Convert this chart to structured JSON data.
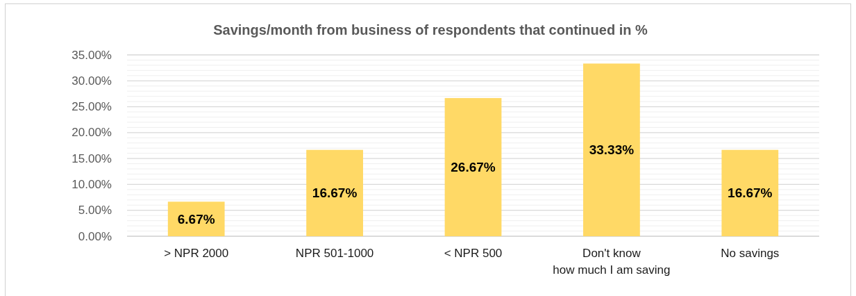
{
  "chart_data": {
    "type": "bar",
    "title": "Savings/month from business of respondents that continued in %",
    "categories": [
      "> NPR 2000",
      "NPR 501-1000",
      "< NPR 500",
      "Don't know\nhow much I am saving",
      "No savings"
    ],
    "values": [
      6.67,
      16.67,
      26.67,
      33.33,
      16.67
    ],
    "value_labels": [
      "6.67%",
      "16.67%",
      "26.67%",
      "33.33%",
      "16.67%"
    ],
    "color": "#ffd966",
    "ylim": [
      0,
      35
    ],
    "yticks": [
      {
        "value": 0,
        "label": "0.00%"
      },
      {
        "value": 1,
        "label": null
      },
      {
        "value": 2,
        "label": null
      },
      {
        "value": 3,
        "label": null
      },
      {
        "value": 4,
        "label": null
      },
      {
        "value": 5,
        "label": "5.00%"
      },
      {
        "value": 6,
        "label": null
      },
      {
        "value": 7,
        "label": null
      },
      {
        "value": 8,
        "label": null
      },
      {
        "value": 9,
        "label": null
      },
      {
        "value": 10,
        "label": "10.00%"
      },
      {
        "value": 11,
        "label": null
      },
      {
        "value": 12,
        "label": null
      },
      {
        "value": 13,
        "label": null
      },
      {
        "value": 14,
        "label": null
      },
      {
        "value": 15,
        "label": "15.00%"
      },
      {
        "value": 16,
        "label": null
      },
      {
        "value": 17,
        "label": null
      },
      {
        "value": 18,
        "label": null
      },
      {
        "value": 19,
        "label": null
      },
      {
        "value": 20,
        "label": "20.00%"
      },
      {
        "value": 21,
        "label": null
      },
      {
        "value": 22,
        "label": null
      },
      {
        "value": 23,
        "label": null
      },
      {
        "value": 24,
        "label": null
      },
      {
        "value": 25,
        "label": "25.00%"
      },
      {
        "value": 26,
        "label": null
      },
      {
        "value": 27,
        "label": null
      },
      {
        "value": 28,
        "label": null
      },
      {
        "value": 29,
        "label": null
      },
      {
        "value": 30,
        "label": "30.00%"
      },
      {
        "value": 31,
        "label": null
      },
      {
        "value": 32,
        "label": null
      },
      {
        "value": 33,
        "label": null
      },
      {
        "value": 34,
        "label": null
      },
      {
        "value": 35,
        "label": "35.00%"
      }
    ],
    "grid": true
  }
}
